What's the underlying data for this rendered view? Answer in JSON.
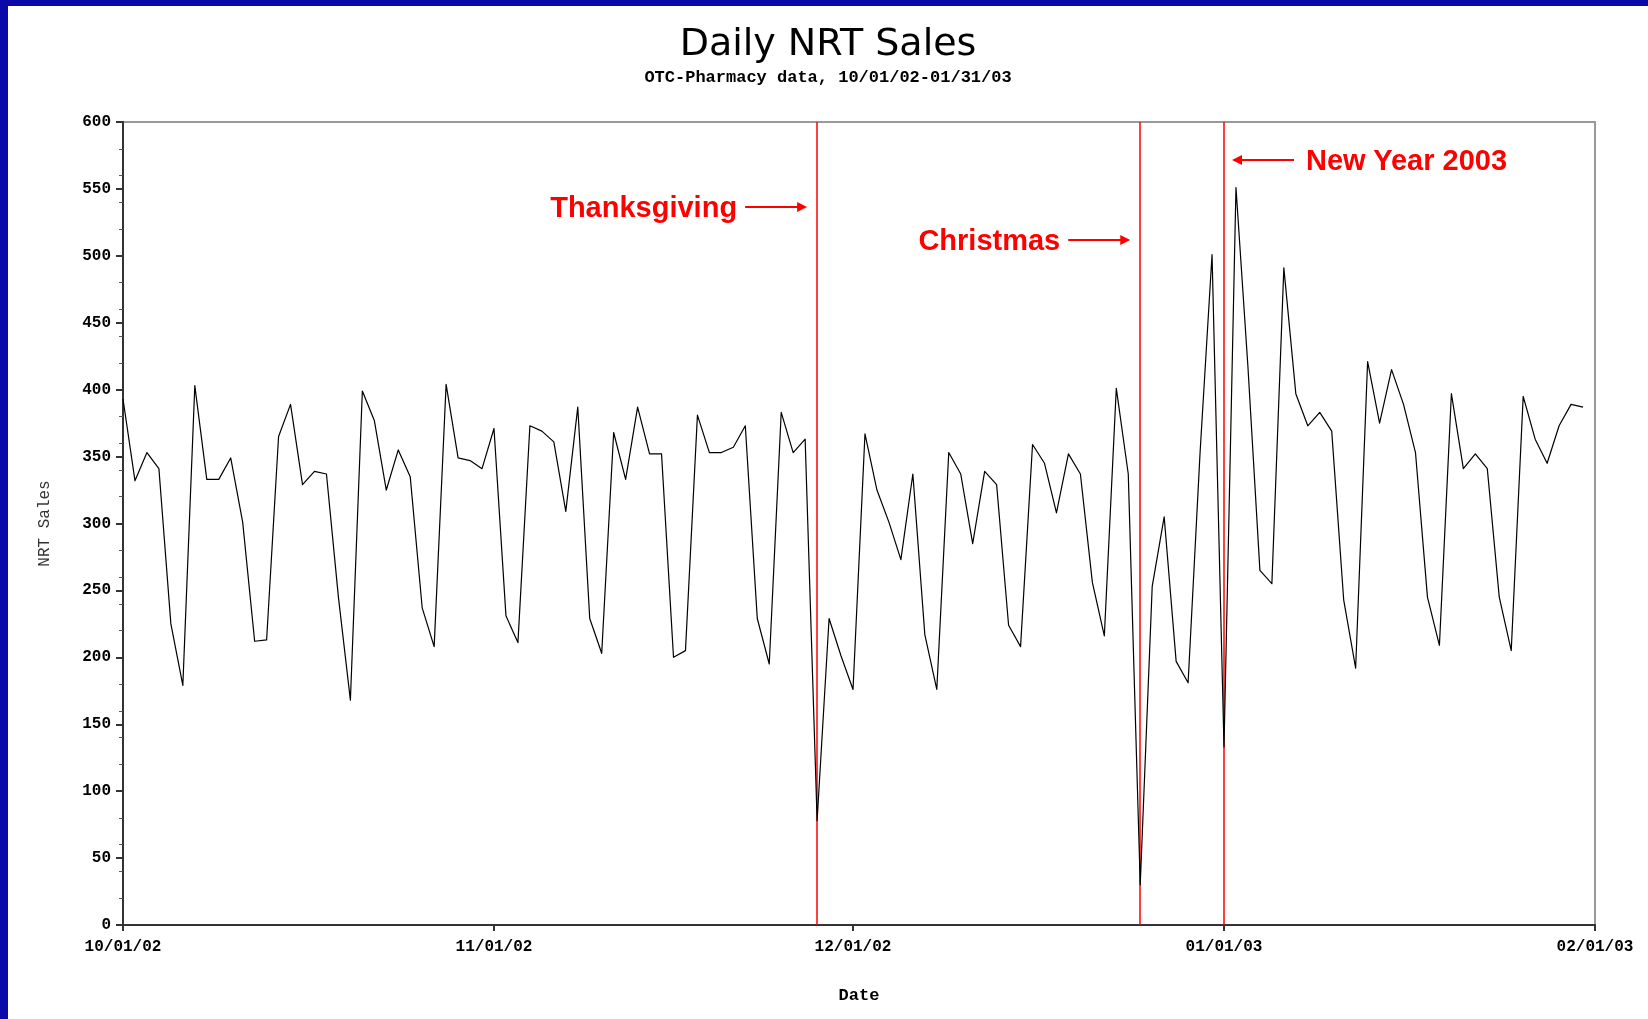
{
  "chart_data": {
    "type": "line",
    "title": "Daily NRT Sales",
    "subtitle": "OTC-Pharmacy data, 10/01/02-01/31/03",
    "xlabel": "Date",
    "ylabel": "NRT Sales",
    "x": [
      "2002-10-01",
      "2002-10-02",
      "2002-10-03",
      "2002-10-04",
      "2002-10-05",
      "2002-10-06",
      "2002-10-07",
      "2002-10-08",
      "2002-10-09",
      "2002-10-10",
      "2002-10-11",
      "2002-10-12",
      "2002-10-13",
      "2002-10-14",
      "2002-10-15",
      "2002-10-16",
      "2002-10-17",
      "2002-10-18",
      "2002-10-19",
      "2002-10-20",
      "2002-10-21",
      "2002-10-22",
      "2002-10-23",
      "2002-10-24",
      "2002-10-25",
      "2002-10-26",
      "2002-10-27",
      "2002-10-28",
      "2002-10-29",
      "2002-10-30",
      "2002-10-31",
      "2002-11-01",
      "2002-11-02",
      "2002-11-03",
      "2002-11-04",
      "2002-11-05",
      "2002-11-06",
      "2002-11-07",
      "2002-11-08",
      "2002-11-09",
      "2002-11-10",
      "2002-11-11",
      "2002-11-12",
      "2002-11-13",
      "2002-11-14",
      "2002-11-15",
      "2002-11-16",
      "2002-11-17",
      "2002-11-18",
      "2002-11-19",
      "2002-11-20",
      "2002-11-21",
      "2002-11-22",
      "2002-11-23",
      "2002-11-24",
      "2002-11-25",
      "2002-11-26",
      "2002-11-27",
      "2002-11-28",
      "2002-11-29",
      "2002-11-30",
      "2002-12-01",
      "2002-12-02",
      "2002-12-03",
      "2002-12-04",
      "2002-12-05",
      "2002-12-06",
      "2002-12-07",
      "2002-12-08",
      "2002-12-09",
      "2002-12-10",
      "2002-12-11",
      "2002-12-12",
      "2002-12-13",
      "2002-12-14",
      "2002-12-15",
      "2002-12-16",
      "2002-12-17",
      "2002-12-18",
      "2002-12-19",
      "2002-12-20",
      "2002-12-21",
      "2002-12-22",
      "2002-12-23",
      "2002-12-24",
      "2002-12-25",
      "2002-12-26",
      "2002-12-27",
      "2002-12-28",
      "2002-12-29",
      "2002-12-30",
      "2002-12-31",
      "2003-01-01",
      "2003-01-02",
      "2003-01-03",
      "2003-01-04",
      "2003-01-05",
      "2003-01-06",
      "2003-01-07",
      "2003-01-08",
      "2003-01-09",
      "2003-01-10",
      "2003-01-11",
      "2003-01-12",
      "2003-01-13",
      "2003-01-14",
      "2003-01-15",
      "2003-01-16",
      "2003-01-17",
      "2003-01-18",
      "2003-01-19",
      "2003-01-20",
      "2003-01-21",
      "2003-01-22",
      "2003-01-23",
      "2003-01-24",
      "2003-01-25",
      "2003-01-26",
      "2003-01-27",
      "2003-01-28",
      "2003-01-29",
      "2003-01-30",
      "2003-01-31"
    ],
    "series": [
      {
        "color": "#000000",
        "values": [
          393,
          332,
          353,
          341,
          225,
          179,
          403,
          333,
          333,
          349,
          301,
          212,
          213,
          365,
          389,
          329,
          339,
          337,
          245,
          168,
          399,
          377,
          325,
          355,
          335,
          237,
          208,
          404,
          349,
          347,
          341,
          371,
          231,
          211,
          373,
          369,
          361,
          309,
          387,
          229,
          203,
          368,
          333,
          387,
          352,
          352,
          200,
          205,
          381,
          353,
          353,
          357,
          373,
          229,
          195,
          383,
          353,
          363,
          78,
          229,
          201,
          176,
          367,
          325,
          301,
          273,
          337,
          217,
          176,
          353,
          337,
          285,
          339,
          329,
          224,
          208,
          359,
          345,
          308,
          352,
          337,
          256,
          216,
          401,
          337,
          30,
          253,
          305,
          197,
          181,
          353,
          501,
          133,
          551,
          417,
          265,
          255,
          491,
          397,
          373,
          383,
          369,
          243,
          192,
          421,
          375,
          415,
          389,
          353,
          245,
          209,
          397,
          341,
          352,
          341,
          245,
          205,
          395,
          363,
          345,
          373,
          389,
          387
        ]
      }
    ],
    "xlim": [
      "2002-10-01",
      "2003-02-01"
    ],
    "xticks": [
      {
        "value": "2002-10-01",
        "label": "10/01/02"
      },
      {
        "value": "2002-11-01",
        "label": "11/01/02"
      },
      {
        "value": "2002-12-01",
        "label": "12/01/02"
      },
      {
        "value": "2003-01-01",
        "label": "01/01/03"
      },
      {
        "value": "2003-02-01",
        "label": "02/01/03"
      }
    ],
    "ylim": [
      0,
      600
    ],
    "yticks": [
      0,
      50,
      100,
      150,
      200,
      250,
      300,
      350,
      400,
      450,
      500,
      550,
      600
    ],
    "ref_lines": [
      {
        "axis": "x",
        "value": "2002-11-28",
        "label": "Thanksgiving",
        "color": "#ff0000"
      },
      {
        "axis": "x",
        "value": "2002-12-25",
        "label": "Christmas",
        "color": "#ff0000"
      },
      {
        "axis": "x",
        "value": "2003-01-01",
        "label": "New Year 2003",
        "color": "#ff0000"
      }
    ],
    "grid": false,
    "marker": "none",
    "line_style": "solid"
  }
}
